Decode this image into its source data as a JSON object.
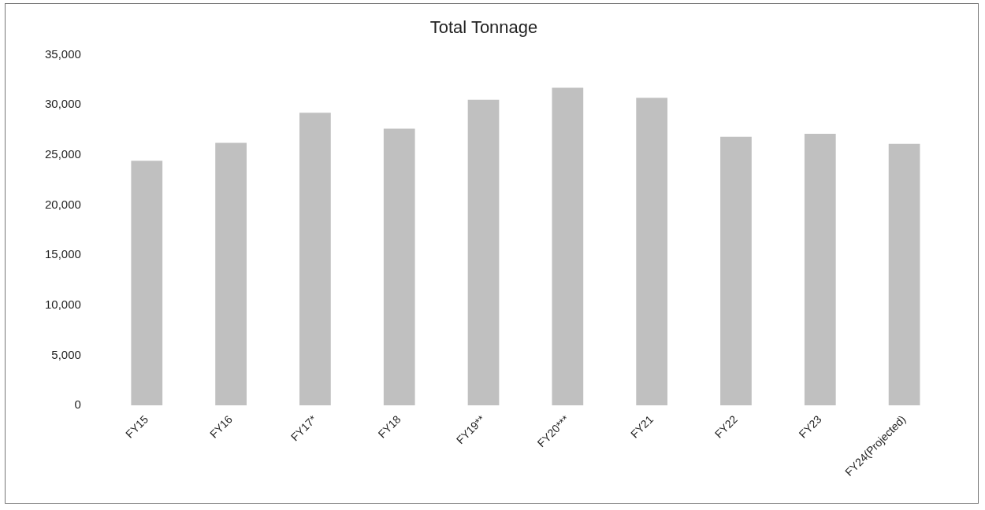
{
  "chart_data": {
    "type": "bar",
    "title": "Total Tonnage",
    "categories": [
      "FY15",
      "FY16",
      "FY17*",
      "FY18",
      "FY19**",
      "FY20***",
      "FY21",
      "FY22",
      "FY23",
      "FY24(Projected)"
    ],
    "values": [
      24400,
      26200,
      29200,
      27600,
      30500,
      31700,
      30700,
      26800,
      27100,
      26100
    ],
    "color": "#c0c0c0",
    "ylim": [
      0,
      35000
    ],
    "yticks": [
      {
        "value": 0,
        "label": "0"
      },
      {
        "value": 5000,
        "label": "5,000"
      },
      {
        "value": 10000,
        "label": "10,000"
      },
      {
        "value": 15000,
        "label": "15,000"
      },
      {
        "value": 20000,
        "label": "20,000"
      },
      {
        "value": 25000,
        "label": "25,000"
      },
      {
        "value": 30000,
        "label": "30,000"
      },
      {
        "value": 35000,
        "label": "35,000"
      }
    ],
    "grid": false,
    "legend": false
  }
}
